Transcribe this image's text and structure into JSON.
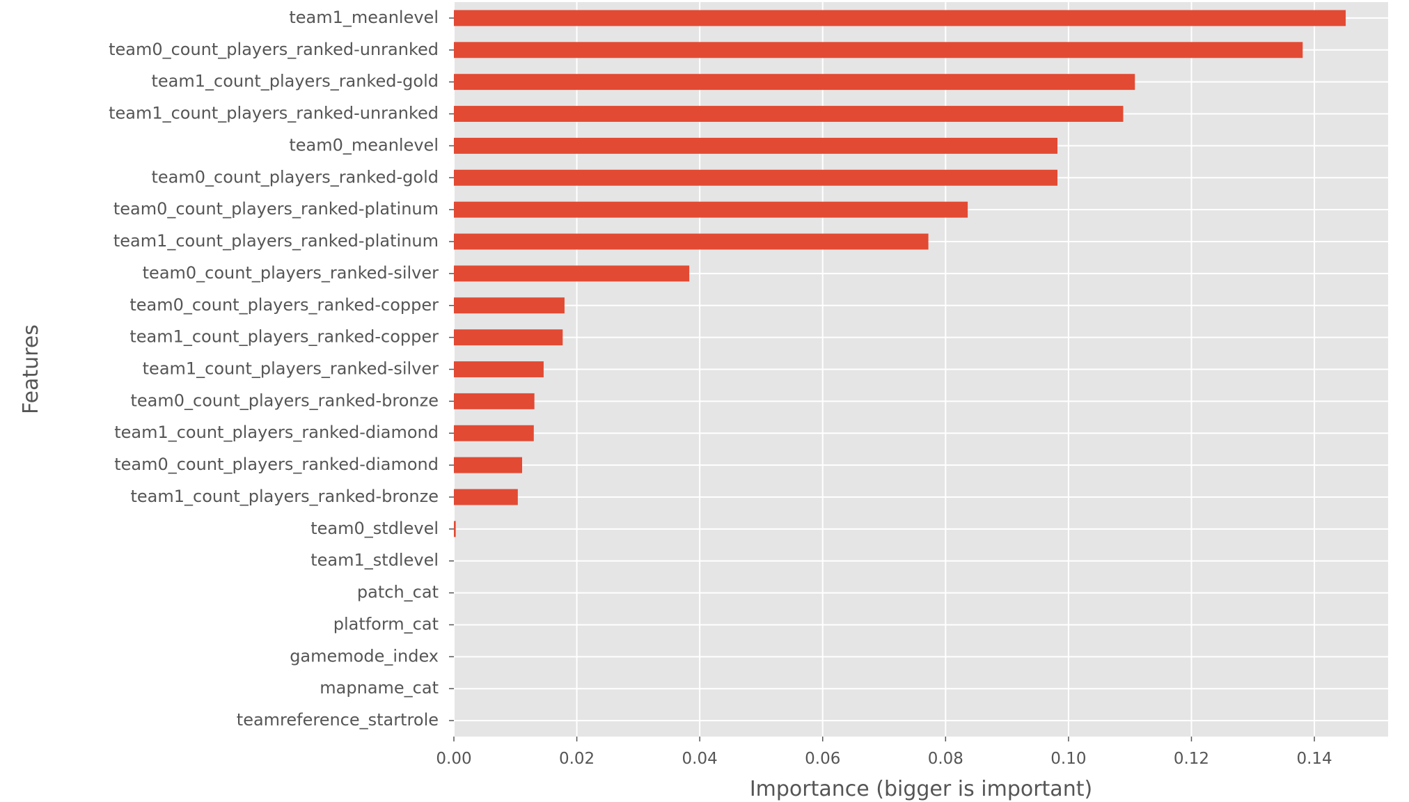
{
  "chart_data": {
    "type": "bar",
    "orientation": "horizontal",
    "style": "ggplot",
    "bar_color": "#E24A33",
    "background_color": "#E5E5E5",
    "grid": true,
    "xlabel": "Importance (bigger is important)",
    "ylabel": "Features",
    "xlim": [
      0,
      0.152
    ],
    "xticks": [
      "0.00",
      "0.02",
      "0.04",
      "0.06",
      "0.08",
      "0.10",
      "0.12",
      "0.14"
    ],
    "categories": [
      "team1_meanlevel",
      "team0_count_players_ranked-unranked",
      "team1_count_players_ranked-gold",
      "team1_count_players_ranked-unranked",
      "team0_meanlevel",
      "team0_count_players_ranked-gold",
      "team0_count_players_ranked-platinum",
      "team1_count_players_ranked-platinum",
      "team0_count_players_ranked-silver",
      "team0_count_players_ranked-copper",
      "team1_count_players_ranked-copper",
      "team1_count_players_ranked-silver",
      "team0_count_players_ranked-bronze",
      "team1_count_players_ranked-diamond",
      "team0_count_players_ranked-diamond",
      "team1_count_players_ranked-bronze",
      "team0_stdlevel",
      "team1_stdlevel",
      "patch_cat",
      "platform_cat",
      "gamemode_index",
      "mapname_cat",
      "teamreference_startrole"
    ],
    "values": [
      0.1451,
      0.1381,
      0.1108,
      0.1089,
      0.0982,
      0.0982,
      0.0836,
      0.0772,
      0.0383,
      0.018,
      0.0177,
      0.0146,
      0.0131,
      0.013,
      0.0111,
      0.0104,
      0.0003,
      0,
      0,
      0,
      0,
      0,
      0
    ]
  }
}
